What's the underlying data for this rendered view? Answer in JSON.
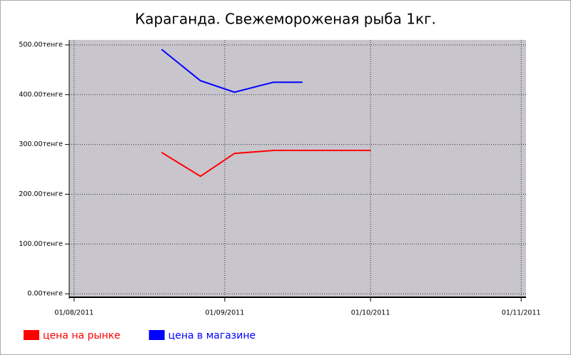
{
  "chart_data": {
    "type": "line",
    "title": "Караганда. Свежемороженая рыба 1кг.",
    "x": [
      "2011-08-19",
      "2011-08-27",
      "2011-09-03",
      "2011-09-11",
      "2011-09-17",
      "2011-09-24",
      "2011-10-01"
    ],
    "series": [
      {
        "name": "цена на рынке",
        "color": "#ff0000",
        "values": [
          284,
          236,
          282,
          288,
          288,
          288,
          288
        ]
      },
      {
        "name": "цена в магазине",
        "color": "#0000ff",
        "values": [
          491,
          428,
          405,
          425,
          425,
          null,
          null
        ]
      }
    ],
    "xlim": [
      "2011-07-31",
      "2011-11-02"
    ],
    "xticks": [
      {
        "value": "2011-08-01",
        "label": "01/08/2011"
      },
      {
        "value": "2011-09-01",
        "label": "01/09/2011"
      },
      {
        "value": "2011-10-01",
        "label": "01/10/2011"
      },
      {
        "value": "2011-11-01",
        "label": "01/11/2011"
      }
    ],
    "ylim": [
      -7,
      510
    ],
    "yticks": [
      {
        "value": 0,
        "label": "0.00тенге"
      },
      {
        "value": 100,
        "label": "100.00тенге"
      },
      {
        "value": 200,
        "label": "200.00тенге"
      },
      {
        "value": 300,
        "label": "300.00тенге"
      },
      {
        "value": 400,
        "label": "400.00тенге"
      },
      {
        "value": 500,
        "label": "500.00тенге"
      }
    ],
    "grid": true,
    "plot_background": "#c8c6cc",
    "legend": "bottom"
  }
}
